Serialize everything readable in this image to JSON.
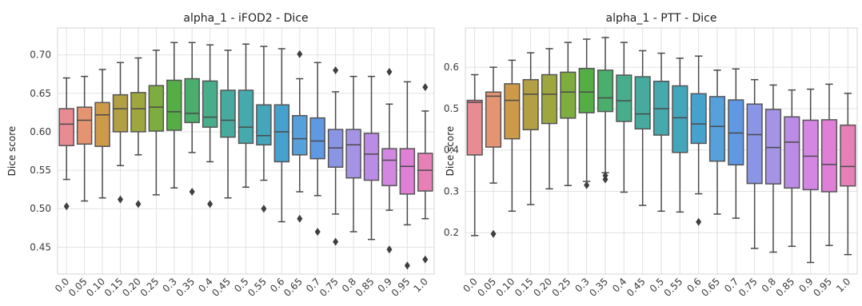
{
  "chart_data": [
    {
      "type": "box",
      "title": "alpha_1 - iFOD2 - Dice",
      "xlabel": "",
      "ylabel": "Dice score",
      "ylim": [
        0.415,
        0.735
      ],
      "yticks": [
        0.45,
        0.5,
        0.55,
        0.6,
        0.65,
        0.7
      ],
      "ytick_labels": [
        "0.45",
        "0.50",
        "0.55",
        "0.60",
        "0.65",
        "0.70"
      ],
      "grid": true,
      "categories": [
        "0.0",
        "0.05",
        "0.10",
        "0.15",
        "0.20",
        "0.25",
        "0.3",
        "0.35",
        "0.4",
        "0.45",
        "0.5",
        "0.55",
        "0.6",
        "0.65",
        "0.7",
        "0.75",
        "0.8",
        "0.85",
        "0.9",
        "0.95",
        "1.0"
      ],
      "colors": [
        "#e88b93",
        "#e59472",
        "#cd9a4a",
        "#b39f44",
        "#9ea640",
        "#7ead3f",
        "#55ad45",
        "#4aae6c",
        "#48ad8a",
        "#46ab9e",
        "#45a9ad",
        "#43a6bb",
        "#47a1ce",
        "#56a0dc",
        "#5f98e3",
        "#8b95e6",
        "#a593e6",
        "#bb8ce5",
        "#d487e2",
        "#df7fd6",
        "#e680b7"
      ],
      "boxes": [
        {
          "whislo": 0.538,
          "q1": 0.582,
          "med": 0.61,
          "q3": 0.63,
          "whishi": 0.67,
          "fliers": [
            0.503
          ]
        },
        {
          "whislo": 0.51,
          "q1": 0.584,
          "med": 0.615,
          "q3": 0.632,
          "whishi": 0.672,
          "fliers": []
        },
        {
          "whislo": 0.514,
          "q1": 0.581,
          "med": 0.622,
          "q3": 0.638,
          "whishi": 0.681,
          "fliers": []
        },
        {
          "whislo": 0.556,
          "q1": 0.6,
          "med": 0.63,
          "q3": 0.648,
          "whishi": 0.69,
          "fliers": [
            0.512
          ]
        },
        {
          "whislo": 0.57,
          "q1": 0.6,
          "med": 0.63,
          "q3": 0.651,
          "whishi": 0.696,
          "fliers": [
            0.506
          ]
        },
        {
          "whislo": 0.518,
          "q1": 0.601,
          "med": 0.632,
          "q3": 0.66,
          "whishi": 0.706,
          "fliers": []
        },
        {
          "whislo": 0.527,
          "q1": 0.602,
          "med": 0.626,
          "q3": 0.667,
          "whishi": 0.716,
          "fliers": []
        },
        {
          "whislo": 0.573,
          "q1": 0.612,
          "med": 0.624,
          "q3": 0.669,
          "whishi": 0.716,
          "fliers": [
            0.522
          ]
        },
        {
          "whislo": 0.561,
          "q1": 0.606,
          "med": 0.619,
          "q3": 0.666,
          "whishi": 0.713,
          "fliers": [
            0.506
          ]
        },
        {
          "whislo": 0.514,
          "q1": 0.593,
          "med": 0.615,
          "q3": 0.654,
          "whishi": 0.706,
          "fliers": []
        },
        {
          "whislo": 0.528,
          "q1": 0.585,
          "med": 0.606,
          "q3": 0.654,
          "whishi": 0.714,
          "fliers": []
        },
        {
          "whislo": 0.537,
          "q1": 0.583,
          "med": 0.595,
          "q3": 0.635,
          "whishi": 0.711,
          "fliers": [
            0.5
          ]
        },
        {
          "whislo": 0.483,
          "q1": 0.561,
          "med": 0.6,
          "q3": 0.635,
          "whishi": 0.708,
          "fliers": []
        },
        {
          "whislo": 0.522,
          "q1": 0.57,
          "med": 0.591,
          "q3": 0.621,
          "whishi": 0.669,
          "fliers": [
            0.701,
            0.487
          ]
        },
        {
          "whislo": 0.517,
          "q1": 0.565,
          "med": 0.588,
          "q3": 0.618,
          "whishi": 0.69,
          "fliers": [
            0.47
          ]
        },
        {
          "whislo": 0.493,
          "q1": 0.554,
          "med": 0.579,
          "q3": 0.603,
          "whishi": 0.652,
          "fliers": [
            0.68,
            0.457
          ]
        },
        {
          "whislo": 0.47,
          "q1": 0.54,
          "med": 0.583,
          "q3": 0.603,
          "whishi": 0.672,
          "fliers": []
        },
        {
          "whislo": 0.46,
          "q1": 0.537,
          "med": 0.571,
          "q3": 0.598,
          "whishi": 0.672,
          "fliers": []
        },
        {
          "whislo": 0.498,
          "q1": 0.53,
          "med": 0.563,
          "q3": 0.578,
          "whishi": 0.636,
          "fliers": [
            0.678,
            0.447
          ]
        },
        {
          "whislo": 0.479,
          "q1": 0.519,
          "med": 0.555,
          "q3": 0.578,
          "whishi": 0.665,
          "fliers": [
            0.426
          ]
        },
        {
          "whislo": 0.487,
          "q1": 0.523,
          "med": 0.55,
          "q3": 0.572,
          "whishi": 0.627,
          "fliers": [
            0.658,
            0.434
          ]
        }
      ]
    },
    {
      "type": "box",
      "title": "alpha_1 - PTT - Dice",
      "xlabel": "",
      "ylabel": "Dice score",
      "ylim": [
        0.1,
        0.695
      ],
      "yticks": [
        0.2,
        0.3,
        0.4,
        0.5,
        0.6
      ],
      "ytick_labels": [
        "0.2",
        "0.3",
        "0.4",
        "0.5",
        "0.6"
      ],
      "grid": true,
      "categories": [
        "0.0",
        "0.05",
        "0.10",
        "0.15",
        "0.20",
        "0.25",
        "0.3",
        "0.35",
        "0.4",
        "0.45",
        "0.5",
        "0.55",
        "0.6",
        "0.65",
        "0.7",
        "0.75",
        "0.8",
        "0.85",
        "0.9",
        "0.95",
        "1.0"
      ],
      "colors": [
        "#e88b93",
        "#e59472",
        "#cd9a4a",
        "#b39f44",
        "#9ea640",
        "#7ead3f",
        "#55ad45",
        "#4aae6c",
        "#48ad8a",
        "#46ab9e",
        "#45a9ad",
        "#43a6bb",
        "#47a1ce",
        "#56a0dc",
        "#5f98e3",
        "#8b95e6",
        "#a593e6",
        "#bb8ce5",
        "#d487e2",
        "#df7fd6",
        "#e680b7"
      ],
      "boxes": [
        {
          "whislo": 0.193,
          "q1": 0.388,
          "med": 0.515,
          "q3": 0.52,
          "whishi": 0.582,
          "fliers": []
        },
        {
          "whislo": 0.32,
          "q1": 0.407,
          "med": 0.53,
          "q3": 0.54,
          "whishi": 0.6,
          "fliers": [
            0.197
          ]
        },
        {
          "whislo": 0.252,
          "q1": 0.427,
          "med": 0.52,
          "q3": 0.56,
          "whishi": 0.617,
          "fliers": []
        },
        {
          "whislo": 0.268,
          "q1": 0.449,
          "med": 0.535,
          "q3": 0.57,
          "whishi": 0.635,
          "fliers": []
        },
        {
          "whislo": 0.306,
          "q1": 0.464,
          "med": 0.535,
          "q3": 0.582,
          "whishi": 0.645,
          "fliers": []
        },
        {
          "whislo": 0.314,
          "q1": 0.477,
          "med": 0.54,
          "q3": 0.588,
          "whishi": 0.66,
          "fliers": []
        },
        {
          "whislo": 0.324,
          "q1": 0.49,
          "med": 0.54,
          "q3": 0.597,
          "whishi": 0.668,
          "fliers": [
            0.315
          ]
        },
        {
          "whislo": 0.345,
          "q1": 0.493,
          "med": 0.526,
          "q3": 0.593,
          "whishi": 0.672,
          "fliers": [
            0.338,
            0.329
          ]
        },
        {
          "whislo": 0.298,
          "q1": 0.469,
          "med": 0.519,
          "q3": 0.581,
          "whishi": 0.66,
          "fliers": []
        },
        {
          "whislo": 0.266,
          "q1": 0.451,
          "med": 0.487,
          "q3": 0.577,
          "whishi": 0.64,
          "fliers": []
        },
        {
          "whislo": 0.252,
          "q1": 0.436,
          "med": 0.5,
          "q3": 0.566,
          "whishi": 0.634,
          "fliers": []
        },
        {
          "whislo": 0.25,
          "q1": 0.394,
          "med": 0.478,
          "q3": 0.555,
          "whishi": 0.622,
          "fliers": []
        },
        {
          "whislo": 0.294,
          "q1": 0.416,
          "med": 0.463,
          "q3": 0.536,
          "whishi": 0.627,
          "fliers": [
            0.226
          ]
        },
        {
          "whislo": 0.245,
          "q1": 0.373,
          "med": 0.457,
          "q3": 0.529,
          "whishi": 0.593,
          "fliers": []
        },
        {
          "whislo": 0.235,
          "q1": 0.364,
          "med": 0.441,
          "q3": 0.521,
          "whishi": 0.596,
          "fliers": []
        },
        {
          "whislo": 0.162,
          "q1": 0.319,
          "med": 0.437,
          "q3": 0.511,
          "whishi": 0.57,
          "fliers": []
        },
        {
          "whislo": 0.153,
          "q1": 0.318,
          "med": 0.406,
          "q3": 0.498,
          "whishi": 0.557,
          "fliers": []
        },
        {
          "whislo": 0.167,
          "q1": 0.308,
          "med": 0.419,
          "q3": 0.48,
          "whishi": 0.545,
          "fliers": []
        },
        {
          "whislo": 0.128,
          "q1": 0.304,
          "med": 0.385,
          "q3": 0.472,
          "whishi": 0.547,
          "fliers": []
        },
        {
          "whislo": 0.169,
          "q1": 0.299,
          "med": 0.365,
          "q3": 0.473,
          "whishi": 0.559,
          "fliers": []
        },
        {
          "whislo": 0.147,
          "q1": 0.313,
          "med": 0.36,
          "q3": 0.46,
          "whishi": 0.537,
          "fliers": []
        }
      ]
    }
  ]
}
